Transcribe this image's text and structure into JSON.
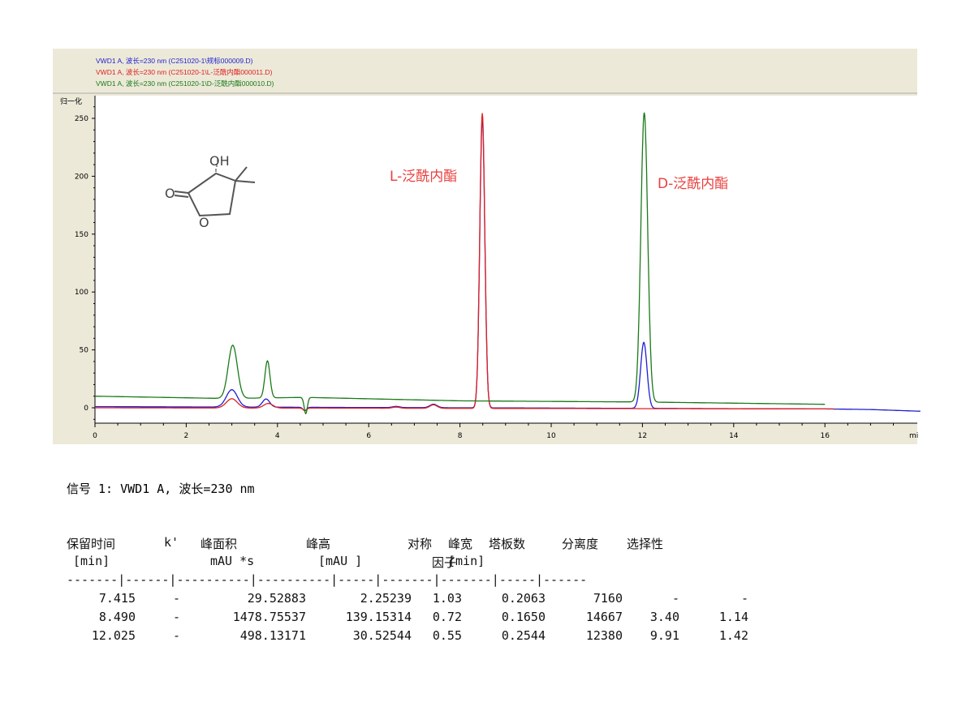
{
  "legend": [
    {
      "text": "VWD1 A, 波长=230 nm (C251020-1\\规标000009.D)",
      "color": "#1f1fd0"
    },
    {
      "text": "VWD1 A, 波长=230 nm (C251020-1\\L-泛酰内酯000011.D)",
      "color": "#e02020"
    },
    {
      "text": "VWD1 A, 波长=230 nm (C251020-1\\D-泛酰内酯000010.D)",
      "color": "#1a7a1a"
    }
  ],
  "chart_data": {
    "type": "line",
    "y_unit_label": "归一化",
    "x_unit_label": "mi",
    "xlim": [
      0,
      18.1
    ],
    "ylim": [
      -18,
      265
    ],
    "x_ticks": [
      "0",
      "2",
      "4",
      "6",
      "8",
      "10",
      "12",
      "14",
      "16"
    ],
    "y_ticks": [
      "0",
      "50",
      "100",
      "150",
      "200",
      "250"
    ],
    "grid": false,
    "annotations": [
      {
        "text": "L-泛酰内酯",
        "x": 6.5,
        "y": 202
      },
      {
        "text": "D-泛酰内酯",
        "x": 12.3,
        "y": 195
      }
    ],
    "series": [
      {
        "color": "#1f1fd0",
        "x_end": 18.1,
        "baseline": [
          [
            0,
            1
          ],
          [
            16,
            -1
          ],
          [
            17,
            -1.5
          ],
          [
            18.1,
            -3
          ]
        ],
        "peaks": [
          [
            3.0,
            15,
            0.12
          ],
          [
            3.75,
            7,
            0.08
          ],
          [
            4.6,
            -3,
            0.04
          ],
          [
            6.6,
            1,
            0.08
          ],
          [
            7.42,
            3,
            0.08
          ],
          [
            8.49,
            250,
            0.055
          ],
          [
            12.03,
            57,
            0.07
          ]
        ]
      },
      {
        "color": "#e02020",
        "x_end": 16.2,
        "baseline": [
          [
            0,
            0
          ],
          [
            16.2,
            -1
          ]
        ],
        "peaks": [
          [
            3.0,
            8,
            0.12
          ],
          [
            3.8,
            4,
            0.1
          ],
          [
            4.6,
            -2,
            0.04
          ],
          [
            6.6,
            1,
            0.08
          ],
          [
            7.42,
            3,
            0.08
          ],
          [
            8.49,
            255,
            0.055
          ]
        ]
      },
      {
        "color": "#1a7a1a",
        "x_end": 16.0,
        "baseline": [
          [
            0,
            10
          ],
          [
            2.9,
            8
          ],
          [
            4.6,
            9
          ],
          [
            8,
            6
          ],
          [
            12,
            5
          ],
          [
            16,
            3
          ]
        ],
        "peaks": [
          [
            3.02,
            46,
            0.1
          ],
          [
            3.78,
            32,
            0.055
          ],
          [
            4.62,
            -14,
            0.035
          ],
          [
            12.04,
            250,
            0.075
          ]
        ]
      }
    ]
  },
  "signal_title": "信号 1: VWD1 A, 波长=230 nm",
  "table": {
    "header1": [
      "保留时间",
      "k'",
      "峰面积",
      "峰高",
      "对称",
      "峰宽",
      "塔板数",
      "分离度",
      "选择性"
    ],
    "header2": [
      "[min]",
      "",
      "mAU   *s",
      "[mAU   ]",
      "因子",
      "[min]",
      "",
      "",
      ""
    ],
    "separator": "-------|------|----------|----------|-----|-------|-------|-----|------",
    "rows": [
      [
        "7.415",
        "-",
        "29.52883",
        "2.25239",
        "1.03",
        "0.2063",
        "7160",
        "-",
        "-"
      ],
      [
        "8.490",
        "-",
        "1478.75537",
        "139.15314",
        "0.72",
        "0.1650",
        "14667",
        "3.40",
        "1.14"
      ],
      [
        "12.025",
        "-",
        "498.13171",
        "30.52544",
        "0.55",
        "0.2544",
        "12380",
        "9.91",
        "1.42"
      ]
    ]
  }
}
